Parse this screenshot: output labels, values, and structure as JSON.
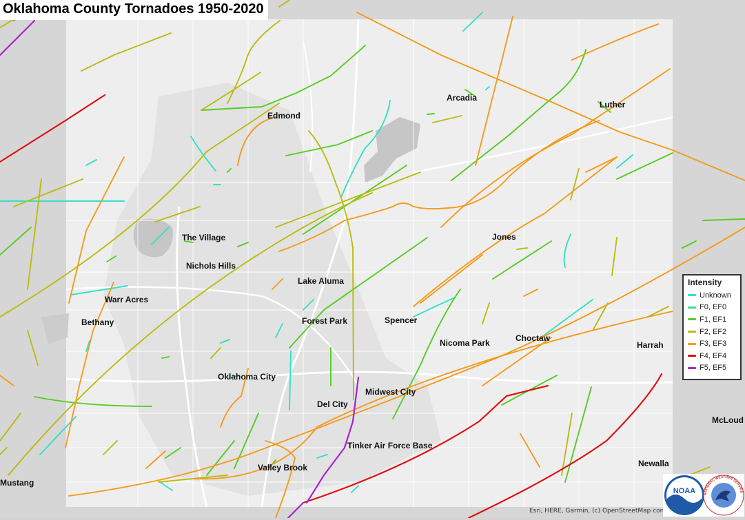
{
  "title": "Oklahoma County Tornadoes 1950-2020",
  "legend": {
    "title": "Intensity",
    "items": [
      {
        "label": "Unknown",
        "color": "#33e0c8"
      },
      {
        "label": "F0, EF0",
        "color": "#33dd99"
      },
      {
        "label": "F1, EF1",
        "color": "#55cc22"
      },
      {
        "label": "F2, EF2",
        "color": "#bbbb11"
      },
      {
        "label": "F3, EF3",
        "color": "#f59a1a"
      },
      {
        "label": "F4, EF4",
        "color": "#dd1111"
      },
      {
        "label": "F5, EF5",
        "color": "#aa22cc"
      }
    ]
  },
  "places": [
    "Edmond",
    "Arcadia",
    "Luther",
    "The Village",
    "Jones",
    "Nichols Hills",
    "Lake Aluma",
    "Warr Acres",
    "Bethany",
    "Forest Park",
    "Spencer",
    "Nicoma Park",
    "Choctaw",
    "Harrah",
    "Oklahoma City",
    "Midwest City",
    "Del City",
    "McLoud",
    "Tinker Air Force Base",
    "Newalla",
    "Valley Brook",
    "Mustang"
  ],
  "attribution": "Esri, HERE, Garmin, (c) OpenStreetMap contributors",
  "logos": [
    "NOAA",
    "NATIONAL WEATHER SERVICE"
  ],
  "colors": {
    "county": "#eeeeee",
    "outside": "#d4d4d4",
    "roads": "#ffffff",
    "urban": "#d9d9d9"
  }
}
